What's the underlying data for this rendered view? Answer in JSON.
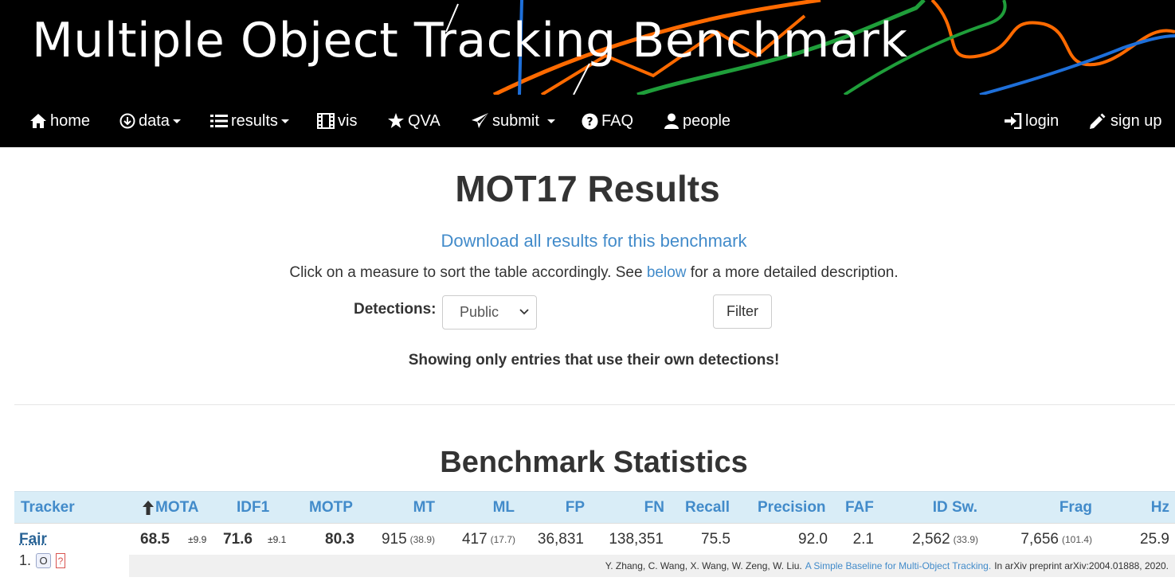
{
  "banner": {
    "title": "Multiple Object Tracking Benchmark",
    "line_colors": [
      "#ff6a00",
      "#1f9e3a",
      "#1e6fd9",
      "#ffffff"
    ]
  },
  "nav": {
    "items": [
      {
        "label": "home",
        "icon": "home-icon"
      },
      {
        "label": "data",
        "icon": "download-icon",
        "dropdown": true
      },
      {
        "label": "results",
        "icon": "list-icon",
        "dropdown": true
      },
      {
        "label": "vis",
        "icon": "film-icon"
      },
      {
        "label": "QVA",
        "icon": "star-icon"
      },
      {
        "label": "submit",
        "icon": "send-icon",
        "dropdown": true
      },
      {
        "label": "FAQ",
        "icon": "question-icon"
      },
      {
        "label": "people",
        "icon": "user-icon"
      }
    ],
    "right": [
      {
        "label": "login",
        "icon": "login-icon"
      },
      {
        "label": "sign up",
        "icon": "pencil-icon"
      }
    ]
  },
  "page": {
    "title": "MOT17 Results",
    "download_link": "Download all results for this benchmark",
    "instructions_before": "Click on a measure to sort the table accordingly. See ",
    "instructions_link": "below",
    "instructions_after": " for a more detailed description.",
    "detections_label": "Detections:",
    "detections_value": "Public",
    "filter_label": "Filter",
    "note": "Showing only entries that use their own detections!",
    "section_title": "Benchmark Statistics"
  },
  "table": {
    "columns": [
      "Tracker",
      "MOTA",
      "IDF1",
      "MOTP",
      "MT",
      "ML",
      "FP",
      "FN",
      "Recall",
      "Precision",
      "FAF",
      "ID Sw.",
      "Frag",
      "Hz"
    ],
    "sorted_column": "MOTA",
    "row": {
      "tracker": "Fair",
      "rank": "1.",
      "badge_o": "O",
      "badge_q": "?",
      "mota": "68.5",
      "mota_std": "±9.9",
      "idf1": "71.6",
      "idf1_std": "±9.1",
      "motp": "80.3",
      "mt": "915",
      "mt_pct": "(38.9)",
      "ml": "417",
      "ml_pct": "(17.7)",
      "fp": "36,831",
      "fn": "138,351",
      "recall": "75.5",
      "precision": "92.0",
      "faf": "2.1",
      "idsw": "2,562",
      "idsw_ratio": "(33.9)",
      "frag": "7,656",
      "frag_ratio": "(101.4)",
      "hz": "25.9"
    },
    "citation": {
      "authors": "Y. Zhang, C. Wang, X. Wang, W. Zeng, W. Liu.",
      "title": "A Simple Baseline for Multi-Object Tracking.",
      "venue": "In arXiv preprint arXiv:2004.01888, 2020."
    }
  }
}
